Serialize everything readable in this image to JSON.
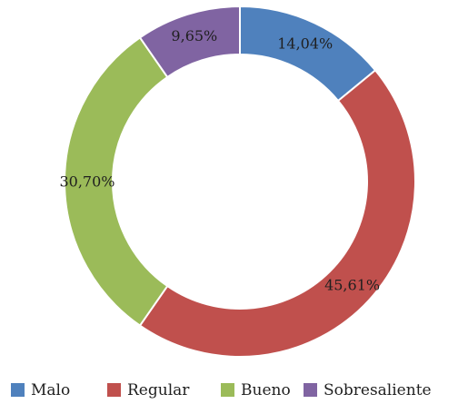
{
  "chart_data": {
    "type": "pie",
    "variant": "donut",
    "title": "",
    "start_angle_deg": 0,
    "direction": "clockwise",
    "slices": [
      {
        "category": "Malo",
        "value": 14.04,
        "label": "14,04%",
        "color": "#4f81bd"
      },
      {
        "category": "Regular",
        "value": 45.61,
        "label": "45,61%",
        "color": "#c0504d"
      },
      {
        "category": "Bueno",
        "value": 30.7,
        "label": "30,70%",
        "color": "#9bbb59"
      },
      {
        "category": "Sobresaliente",
        "value": 9.65,
        "label": "9,65%",
        "color": "#8064a2"
      }
    ],
    "legend": {
      "position": "bottom",
      "items": [
        "Malo",
        "Regular",
        "Bueno",
        "Sobresaliente"
      ]
    }
  }
}
